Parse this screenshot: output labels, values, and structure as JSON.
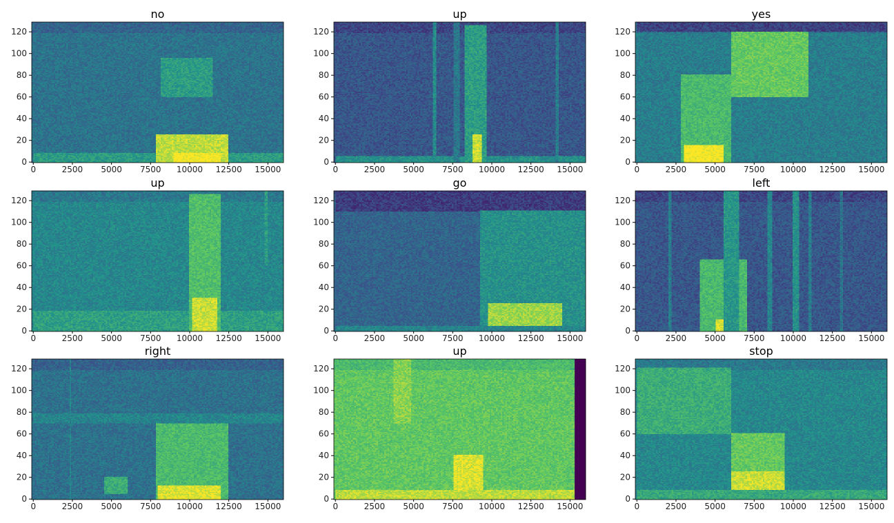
{
  "chart_data": [
    {
      "type": "heatmap",
      "title": "no",
      "xlim": [
        -100,
        16000
      ],
      "ylim": [
        -0.5,
        129
      ],
      "xticks": [
        0,
        2500,
        5000,
        7500,
        10000,
        12500,
        15000
      ],
      "yticks": [
        0,
        20,
        40,
        60,
        80,
        100,
        120
      ],
      "colormap": "viridis",
      "base_level": 0.38,
      "high_energy_regions": [
        [
          0,
          16000,
          0,
          8,
          0.55
        ],
        [
          7800,
          12500,
          0,
          25,
          0.9
        ],
        [
          8200,
          11500,
          60,
          95,
          0.55
        ],
        [
          9000,
          12000,
          0,
          8,
          1.0
        ]
      ]
    },
    {
      "type": "heatmap",
      "title": "up",
      "xlim": [
        -100,
        16000
      ],
      "ylim": [
        -0.5,
        129
      ],
      "xticks": [
        0,
        2500,
        5000,
        7500,
        10000,
        12500,
        15000
      ],
      "yticks": [
        0,
        20,
        40,
        60,
        80,
        100,
        120
      ],
      "colormap": "viridis",
      "base_level": 0.27,
      "high_energy_regions": [
        [
          0,
          16000,
          0,
          5,
          0.5
        ],
        [
          6250,
          6450,
          0,
          129,
          0.48
        ],
        [
          14100,
          14300,
          0,
          129,
          0.42
        ],
        [
          8300,
          9700,
          0,
          125,
          0.55
        ],
        [
          8800,
          9400,
          0,
          25,
          0.92
        ],
        [
          7500,
          8000,
          0,
          129,
          0.4
        ]
      ]
    },
    {
      "type": "heatmap",
      "title": "yes",
      "xlim": [
        -100,
        16000
      ],
      "ylim": [
        -0.5,
        129
      ],
      "xticks": [
        0,
        2500,
        5000,
        7500,
        10000,
        12500,
        15000
      ],
      "yticks": [
        0,
        20,
        40,
        60,
        80,
        100,
        120
      ],
      "colormap": "viridis",
      "base_level": 0.42,
      "high_energy_regions": [
        [
          2800,
          6000,
          0,
          80,
          0.68
        ],
        [
          3000,
          5500,
          0,
          15,
          1.0
        ],
        [
          6000,
          11000,
          60,
          120,
          0.75
        ],
        [
          0,
          16000,
          120,
          129,
          0.2
        ]
      ]
    },
    {
      "type": "heatmap",
      "title": "up",
      "xlim": [
        -100,
        16000
      ],
      "ylim": [
        -0.5,
        129
      ],
      "xticks": [
        0,
        2500,
        5000,
        7500,
        10000,
        12500,
        15000
      ],
      "yticks": [
        0,
        20,
        40,
        60,
        80,
        100,
        120
      ],
      "colormap": "viridis",
      "base_level": 0.46,
      "high_energy_regions": [
        [
          0,
          16000,
          0,
          18,
          0.56
        ],
        [
          10000,
          12000,
          0,
          125,
          0.7
        ],
        [
          10200,
          11800,
          0,
          30,
          0.92
        ],
        [
          14800,
          15000,
          60,
          129,
          0.55
        ]
      ]
    },
    {
      "type": "heatmap",
      "title": "go",
      "xlim": [
        -100,
        16000
      ],
      "ylim": [
        -0.5,
        129
      ],
      "xticks": [
        0,
        2500,
        5000,
        7500,
        10000,
        12500,
        15000
      ],
      "yticks": [
        0,
        20,
        40,
        60,
        80,
        100,
        120
      ],
      "colormap": "viridis",
      "base_level": 0.32,
      "high_energy_regions": [
        [
          0,
          16000,
          110,
          129,
          0.18
        ],
        [
          9300,
          16000,
          0,
          110,
          0.5
        ],
        [
          9800,
          14500,
          0,
          25,
          0.85
        ],
        [
          0,
          16000,
          0,
          4,
          0.45
        ]
      ]
    },
    {
      "type": "heatmap",
      "title": "left",
      "xlim": [
        -100,
        16000
      ],
      "ylim": [
        -0.5,
        129
      ],
      "xticks": [
        0,
        2500,
        5000,
        7500,
        10000,
        12500,
        15000
      ],
      "yticks": [
        0,
        20,
        40,
        60,
        80,
        100,
        120
      ],
      "colormap": "viridis",
      "base_level": 0.27,
      "high_energy_regions": [
        [
          4000,
          7000,
          0,
          65,
          0.68
        ],
        [
          5000,
          6500,
          0,
          10,
          0.95
        ],
        [
          5500,
          6500,
          0,
          129,
          0.52
        ],
        [
          2000,
          2200,
          0,
          129,
          0.42
        ],
        [
          8400,
          8700,
          0,
          129,
          0.45
        ],
        [
          10000,
          10400,
          0,
          129,
          0.5
        ],
        [
          11000,
          11200,
          0,
          129,
          0.42
        ],
        [
          13000,
          13200,
          0,
          129,
          0.38
        ]
      ]
    },
    {
      "type": "heatmap",
      "title": "right",
      "xlim": [
        -100,
        16000
      ],
      "ylim": [
        -0.5,
        129
      ],
      "xticks": [
        0,
        2500,
        5000,
        7500,
        10000,
        12500,
        15000
      ],
      "yticks": [
        0,
        20,
        40,
        60,
        80,
        100,
        120
      ],
      "colormap": "viridis",
      "base_level": 0.37,
      "high_energy_regions": [
        [
          7800,
          12500,
          0,
          70,
          0.68
        ],
        [
          8000,
          12000,
          0,
          12,
          0.95
        ],
        [
          4500,
          6000,
          5,
          20,
          0.62
        ],
        [
          0,
          16000,
          70,
          78,
          0.45
        ],
        [
          2300,
          2400,
          0,
          129,
          0.45
        ]
      ]
    },
    {
      "type": "heatmap",
      "title": "up",
      "xlim": [
        -100,
        16000
      ],
      "ylim": [
        -0.5,
        129
      ],
      "xticks": [
        0,
        2500,
        5000,
        7500,
        10000,
        12500,
        15000
      ],
      "yticks": [
        0,
        20,
        40,
        60,
        80,
        100,
        120
      ],
      "colormap": "viridis",
      "base_level": 0.74,
      "high_energy_regions": [
        [
          7500,
          9500,
          0,
          40,
          0.95
        ],
        [
          0,
          15300,
          0,
          8,
          0.9
        ],
        [
          3700,
          4800,
          70,
          129,
          0.82
        ],
        [
          15300,
          16000,
          0,
          129,
          0.0
        ]
      ]
    },
    {
      "type": "heatmap",
      "title": "stop",
      "xlim": [
        -100,
        16000
      ],
      "ylim": [
        -0.5,
        129
      ],
      "xticks": [
        0,
        2500,
        5000,
        7500,
        10000,
        12500,
        15000
      ],
      "yticks": [
        0,
        20,
        40,
        60,
        80,
        100,
        120
      ],
      "colormap": "viridis",
      "base_level": 0.46,
      "high_energy_regions": [
        [
          0,
          6000,
          60,
          120,
          0.62
        ],
        [
          6000,
          9500,
          0,
          60,
          0.75
        ],
        [
          6000,
          9500,
          0,
          25,
          0.92
        ],
        [
          0,
          16000,
          0,
          8,
          0.6
        ]
      ]
    }
  ]
}
